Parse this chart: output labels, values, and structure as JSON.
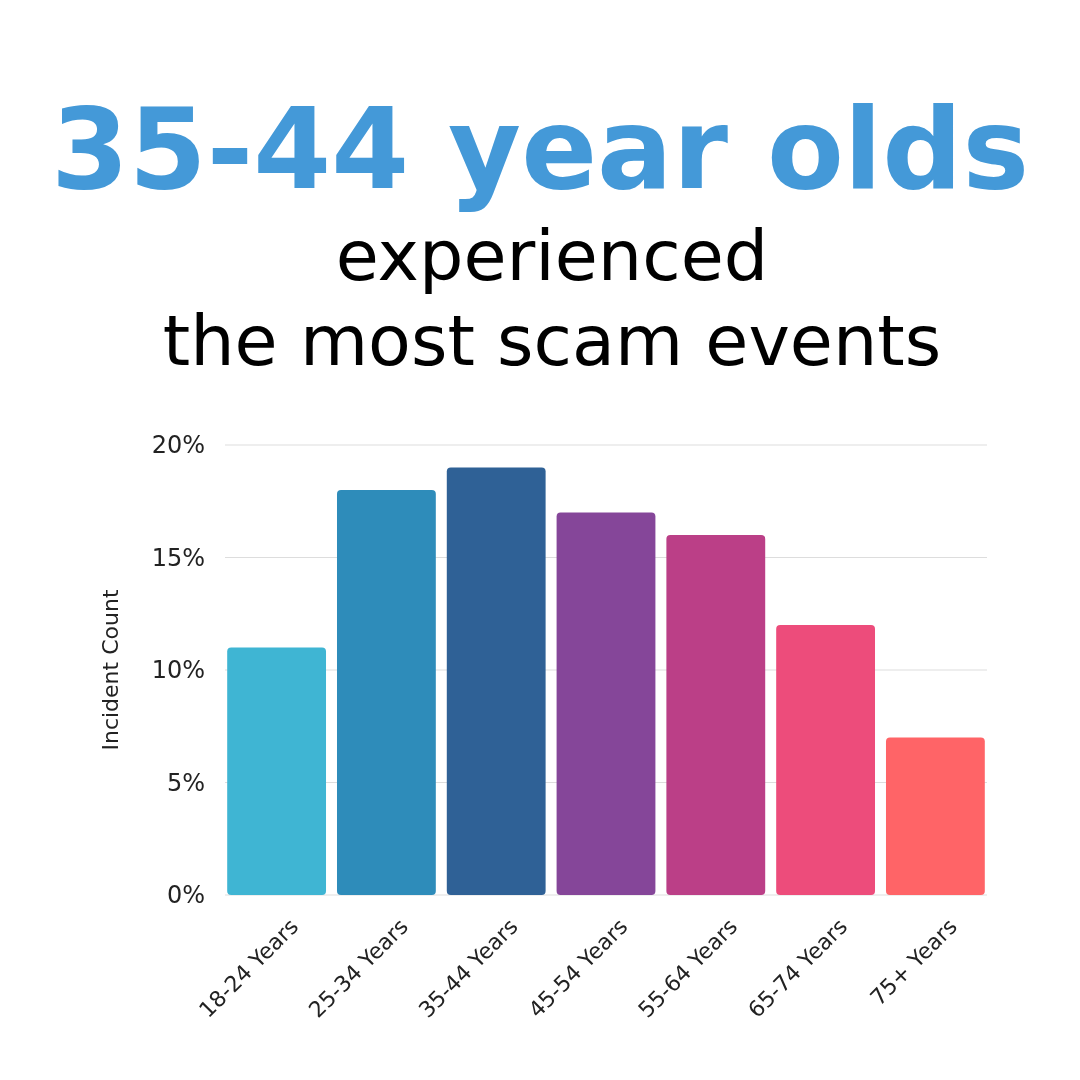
{
  "chart_data": {
    "type": "bar",
    "title": "35-44 year olds",
    "subtitle": "experienced\nthe most scam events",
    "ylabel": "Incident Count",
    "categories": [
      "18-24 Years",
      "25-34 Years",
      "35-44 Years",
      "45-54 Years",
      "55-64 Years",
      "65-74 Years",
      "75+ Years"
    ],
    "values": [
      11,
      18,
      19,
      17,
      16,
      12,
      7
    ],
    "colors": [
      "#3fb5d3",
      "#2e8cba",
      "#2f6196",
      "#854699",
      "#bb3f87",
      "#ed4c7b",
      "#ff6467"
    ],
    "ylim": [
      0,
      20
    ],
    "yticks": [
      {
        "value": 0,
        "label": "0%"
      },
      {
        "value": 5,
        "label": "5%"
      },
      {
        "value": 10,
        "label": "10%"
      },
      {
        "value": 15,
        "label": "15%"
      },
      {
        "value": 20,
        "label": "20%"
      }
    ],
    "grid": "y"
  }
}
